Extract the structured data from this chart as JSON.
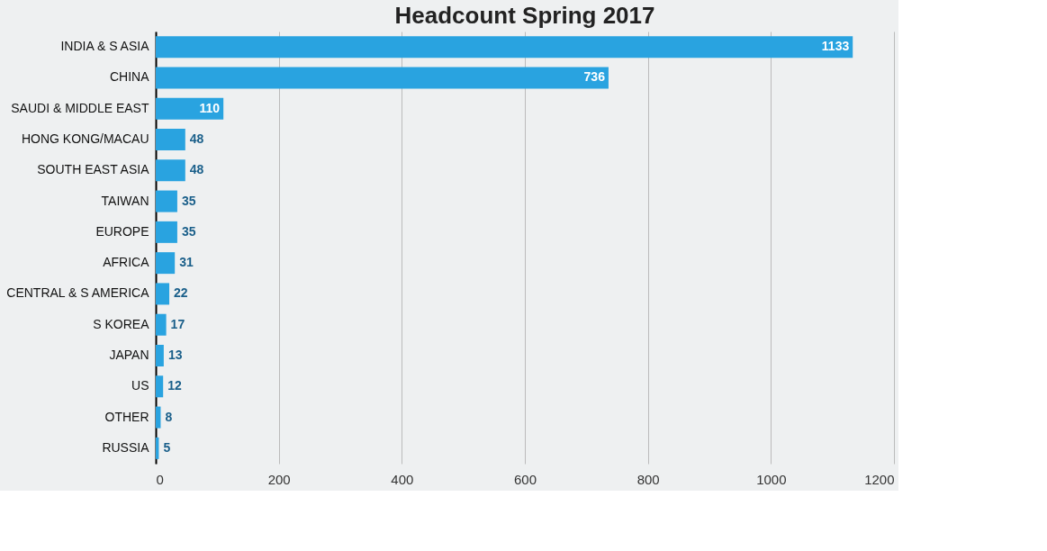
{
  "chart_data": {
    "type": "bar",
    "orientation": "horizontal",
    "title": "Headcount Spring 2017",
    "categories": [
      "INDIA & S ASIA",
      "CHINA",
      "SAUDI & MIDDLE EAST",
      "HONG KONG/MACAU",
      "SOUTH EAST ASIA",
      "TAIWAN",
      "EUROPE",
      "AFRICA",
      "CENTRAL & S AMERICA",
      "S KOREA",
      "JAPAN",
      "US",
      "OTHER",
      "RUSSIA"
    ],
    "values": [
      1133,
      736,
      110,
      48,
      48,
      35,
      35,
      31,
      22,
      17,
      13,
      12,
      8,
      5
    ],
    "color": "#29a3e0",
    "xlim": [
      0,
      1200
    ],
    "xticks": [
      0,
      200,
      400,
      600,
      800,
      1000,
      1200
    ],
    "grid": "x",
    "data_labels": true
  }
}
